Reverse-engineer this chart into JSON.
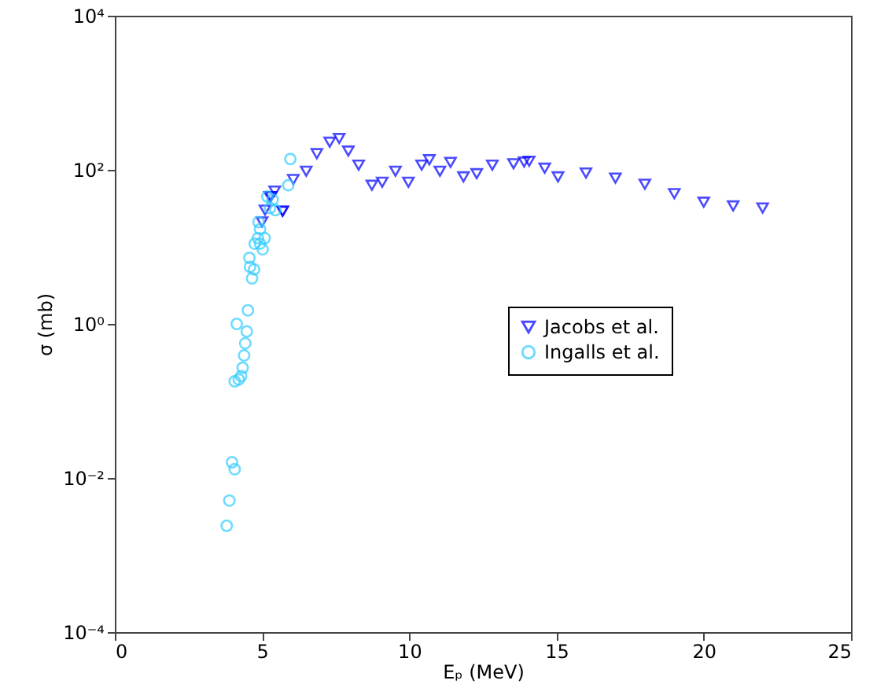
{
  "chart_data": {
    "type": "scatter",
    "xlabel": "Eₚ (MeV)",
    "ylabel": "σ (mb)",
    "xlim": [
      0,
      25
    ],
    "xticks": [
      0,
      5,
      10,
      15,
      20,
      25
    ],
    "ylim": [
      0.0001,
      10000
    ],
    "yticks": [
      {
        "value": 0.0001,
        "label": "10⁻⁴"
      },
      {
        "value": 0.01,
        "label": "10⁻²"
      },
      {
        "value": 1,
        "label": "10⁰"
      },
      {
        "value": 100,
        "label": "10²"
      },
      {
        "value": 10000,
        "label": "10⁴"
      }
    ],
    "log": "y",
    "grid": false,
    "legend": "right",
    "series": [
      {
        "name": "Jacobs et al.",
        "color": "#0000ff",
        "marker": "triangle",
        "x": [
          5.0,
          5.1,
          5.26,
          5.3,
          5.43,
          5.7,
          5.7,
          6.06,
          6.5,
          6.86,
          7.3,
          7.62,
          7.93,
          8.28,
          8.73,
          9.08,
          9.53,
          9.97,
          10.42,
          10.68,
          11.04,
          11.4,
          11.84,
          12.29,
          12.82,
          13.54,
          13.9,
          14.07,
          14.6,
          15.05,
          16,
          17,
          18,
          19,
          20,
          21,
          22
        ],
        "values": [
          21,
          30,
          45,
          45,
          53,
          29,
          29,
          75,
          96,
          162,
          228,
          255,
          175,
          115,
          63,
          69,
          96,
          69,
          115,
          135,
          96,
          125,
          81,
          89,
          115,
          120,
          126,
          129,
          105,
          81,
          91,
          78,
          65,
          49,
          38,
          34,
          32
        ]
      },
      {
        "name": "Ingalls et al.",
        "color": "#33ccff",
        "marker": "circle",
        "x": [
          3.8,
          3.89,
          3.98,
          4.07,
          4.07,
          4.21,
          4.29,
          4.34,
          4.39,
          4.43,
          4.48,
          4.14,
          4.52,
          4.66,
          4.59,
          4.73,
          4.57,
          5.02,
          4.93,
          4.75,
          4.86,
          4.93,
          4.88,
          5.09,
          5.18,
          5.36,
          5.27,
          5.45,
          5.89,
          5.96
        ],
        "values": [
          0.0024,
          0.0051,
          0.016,
          0.013,
          0.18,
          0.19,
          0.21,
          0.27,
          0.39,
          0.56,
          0.8,
          1.0,
          1.5,
          3.9,
          5.5,
          5.1,
          7.2,
          9.3,
          11,
          11,
          13,
          17,
          21,
          13,
          45,
          41,
          32,
          30,
          63,
          138
        ]
      }
    ]
  }
}
